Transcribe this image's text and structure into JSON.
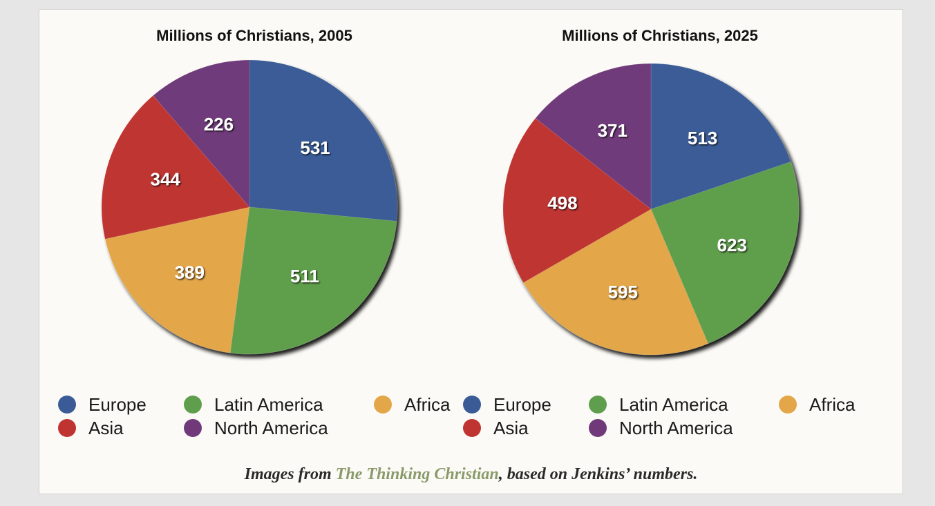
{
  "chart_data": [
    {
      "type": "pie",
      "title": "Millions of Christians, 2005",
      "categories": [
        "Europe",
        "Latin America",
        "Africa",
        "Asia",
        "North America"
      ],
      "values": [
        531,
        511,
        389,
        344,
        226
      ],
      "colors": [
        "#3a5b96",
        "#5f9e4c",
        "#e3a648",
        "#bf3431",
        "#703a7a"
      ],
      "legend": "bottom"
    },
    {
      "type": "pie",
      "title": "Millions of Christians, 2025",
      "categories": [
        "Europe",
        "Latin America",
        "Africa",
        "Asia",
        "North America"
      ],
      "values": [
        513,
        623,
        595,
        498,
        371
      ],
      "colors": [
        "#3a5b96",
        "#5f9e4c",
        "#e3a648",
        "#bf3431",
        "#703a7a"
      ],
      "legend": "bottom"
    }
  ],
  "caption": {
    "prefix": "Images from ",
    "link": "The Thinking Christian",
    "suffix": ", based on Jenkins’ numbers."
  }
}
